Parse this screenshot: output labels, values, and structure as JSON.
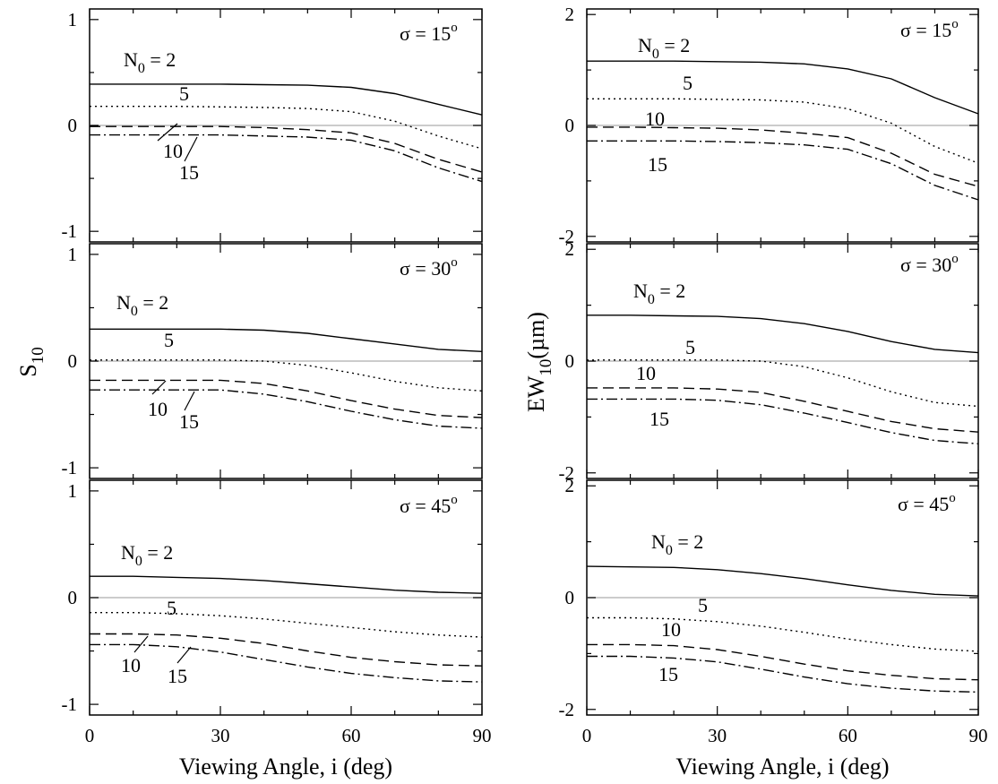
{
  "chart_data": {
    "type": "line",
    "x_values": [
      0,
      10,
      20,
      30,
      40,
      50,
      60,
      70,
      80,
      90
    ],
    "xlim": [
      0,
      90
    ],
    "xticks": [
      0,
      30,
      60,
      90
    ],
    "xlabel": "Viewing Angle, i (deg)",
    "grid": false,
    "columns": [
      {
        "ylabel_main": "S",
        "ylabel_sub": "10",
        "ylabel_suffix": "",
        "ylim": [
          -1.1,
          1.1
        ],
        "yticks": [
          -1,
          0,
          1
        ],
        "panels": [
          {
            "sigma_label": "σ = 15",
            "sigma_sup": "o",
            "series": [
              {
                "name": "N0 = 2",
                "label_main": "N",
                "label_sub": "0",
                "label_tail": " = 2",
                "style": "solid",
                "values": [
                  0.39,
                  0.39,
                  0.39,
                  0.39,
                  0.385,
                  0.38,
                  0.36,
                  0.3,
                  0.2,
                  0.1
                ]
              },
              {
                "name": "5",
                "style": "dotted",
                "values": [
                  0.18,
                  0.18,
                  0.18,
                  0.175,
                  0.17,
                  0.16,
                  0.13,
                  0.04,
                  -0.1,
                  -0.22
                ]
              },
              {
                "name": "10",
                "style": "dashed",
                "values": [
                  -0.01,
                  -0.01,
                  -0.01,
                  -0.01,
                  -0.02,
                  -0.04,
                  -0.07,
                  -0.17,
                  -0.32,
                  -0.44
                ]
              },
              {
                "name": "15",
                "style": "dashdot",
                "values": [
                  -0.09,
                  -0.09,
                  -0.09,
                  -0.09,
                  -0.1,
                  -0.11,
                  -0.14,
                  -0.24,
                  -0.4,
                  -0.53
                ]
              }
            ]
          },
          {
            "sigma_label": "σ = 30",
            "sigma_sup": "o",
            "series": [
              {
                "name": "N0 = 2",
                "label_main": "N",
                "label_sub": "0",
                "label_tail": " = 2",
                "style": "solid",
                "values": [
                  0.3,
                  0.3,
                  0.3,
                  0.3,
                  0.29,
                  0.26,
                  0.21,
                  0.16,
                  0.11,
                  0.09
                ]
              },
              {
                "name": "5",
                "style": "dotted",
                "values": [
                  0.01,
                  0.01,
                  0.01,
                  0.01,
                  0.0,
                  -0.04,
                  -0.11,
                  -0.19,
                  -0.25,
                  -0.28
                ]
              },
              {
                "name": "10",
                "style": "dashed",
                "values": [
                  -0.18,
                  -0.18,
                  -0.18,
                  -0.18,
                  -0.21,
                  -0.28,
                  -0.37,
                  -0.45,
                  -0.51,
                  -0.53
                ]
              },
              {
                "name": "15",
                "style": "dashdot",
                "values": [
                  -0.27,
                  -0.27,
                  -0.27,
                  -0.27,
                  -0.31,
                  -0.38,
                  -0.47,
                  -0.55,
                  -0.61,
                  -0.63
                ]
              }
            ]
          },
          {
            "sigma_label": "σ = 45",
            "sigma_sup": "o",
            "series": [
              {
                "name": "N0 = 2",
                "label_main": "N",
                "label_sub": "0",
                "label_tail": " = 2",
                "style": "solid",
                "values": [
                  0.2,
                  0.2,
                  0.19,
                  0.18,
                  0.16,
                  0.13,
                  0.1,
                  0.07,
                  0.05,
                  0.04
                ]
              },
              {
                "name": "5",
                "style": "dotted",
                "values": [
                  -0.14,
                  -0.14,
                  -0.15,
                  -0.17,
                  -0.2,
                  -0.24,
                  -0.28,
                  -0.32,
                  -0.35,
                  -0.37
                ]
              },
              {
                "name": "10",
                "style": "dashed",
                "values": [
                  -0.34,
                  -0.34,
                  -0.35,
                  -0.38,
                  -0.43,
                  -0.5,
                  -0.56,
                  -0.6,
                  -0.63,
                  -0.64
                ]
              },
              {
                "name": "15",
                "style": "dashdot",
                "values": [
                  -0.44,
                  -0.44,
                  -0.46,
                  -0.51,
                  -0.58,
                  -0.65,
                  -0.71,
                  -0.75,
                  -0.78,
                  -0.79
                ]
              }
            ]
          }
        ]
      },
      {
        "ylabel_main": "EW",
        "ylabel_sub": "10",
        "ylabel_suffix": "(µm)",
        "ylim": [
          -2.1,
          2.1
        ],
        "yticks": [
          -2,
          0,
          2
        ],
        "panels": [
          {
            "sigma_label": "σ = 15",
            "sigma_sup": "o",
            "series": [
              {
                "name": "N0 = 2",
                "label_main": "N",
                "label_sub": "0",
                "label_tail": " = 2",
                "style": "solid",
                "values": [
                  1.16,
                  1.16,
                  1.16,
                  1.15,
                  1.14,
                  1.11,
                  1.02,
                  0.84,
                  0.5,
                  0.21
                ]
              },
              {
                "name": "5",
                "style": "dotted",
                "values": [
                  0.48,
                  0.48,
                  0.48,
                  0.47,
                  0.46,
                  0.42,
                  0.3,
                  0.04,
                  -0.38,
                  -0.68
                ]
              },
              {
                "name": "10",
                "style": "dashed",
                "values": [
                  -0.03,
                  -0.03,
                  -0.04,
                  -0.05,
                  -0.08,
                  -0.14,
                  -0.22,
                  -0.5,
                  -0.88,
                  -1.1
                ]
              },
              {
                "name": "15",
                "style": "dashdot",
                "values": [
                  -0.28,
                  -0.28,
                  -0.28,
                  -0.29,
                  -0.31,
                  -0.35,
                  -0.43,
                  -0.69,
                  -1.08,
                  -1.34
                ]
              }
            ]
          },
          {
            "sigma_label": "σ = 30",
            "sigma_sup": "o",
            "series": [
              {
                "name": "N0 = 2",
                "label_main": "N",
                "label_sub": "0",
                "label_tail": " = 2",
                "style": "solid",
                "values": [
                  0.82,
                  0.82,
                  0.81,
                  0.8,
                  0.76,
                  0.67,
                  0.53,
                  0.35,
                  0.21,
                  0.15
                ]
              },
              {
                "name": "5",
                "style": "dotted",
                "values": [
                  0.02,
                  0.02,
                  0.02,
                  0.02,
                  0.0,
                  -0.1,
                  -0.3,
                  -0.55,
                  -0.74,
                  -0.81
                ]
              },
              {
                "name": "10",
                "style": "dashed",
                "values": [
                  -0.48,
                  -0.48,
                  -0.48,
                  -0.5,
                  -0.56,
                  -0.72,
                  -0.9,
                  -1.08,
                  -1.21,
                  -1.27
                ]
              },
              {
                "name": "15",
                "style": "dashdot",
                "values": [
                  -0.68,
                  -0.68,
                  -0.68,
                  -0.7,
                  -0.78,
                  -0.93,
                  -1.1,
                  -1.28,
                  -1.42,
                  -1.48
                ]
              }
            ]
          },
          {
            "sigma_label": "σ = 45",
            "sigma_sup": "o",
            "series": [
              {
                "name": "N0 = 2",
                "label_main": "N",
                "label_sub": "0",
                "label_tail": " = 2",
                "style": "solid",
                "values": [
                  0.56,
                  0.55,
                  0.54,
                  0.5,
                  0.43,
                  0.34,
                  0.23,
                  0.13,
                  0.06,
                  0.03
                ]
              },
              {
                "name": "5",
                "style": "dotted",
                "values": [
                  -0.36,
                  -0.36,
                  -0.38,
                  -0.43,
                  -0.51,
                  -0.62,
                  -0.74,
                  -0.84,
                  -0.92,
                  -0.96
                ]
              },
              {
                "name": "10",
                "style": "dashed",
                "values": [
                  -0.84,
                  -0.84,
                  -0.86,
                  -0.93,
                  -1.05,
                  -1.19,
                  -1.31,
                  -1.39,
                  -1.45,
                  -1.47
                ]
              },
              {
                "name": "15",
                "style": "dashdot",
                "values": [
                  -1.05,
                  -1.05,
                  -1.08,
                  -1.15,
                  -1.28,
                  -1.42,
                  -1.54,
                  -1.62,
                  -1.67,
                  -1.69
                ]
              }
            ]
          }
        ]
      }
    ]
  }
}
